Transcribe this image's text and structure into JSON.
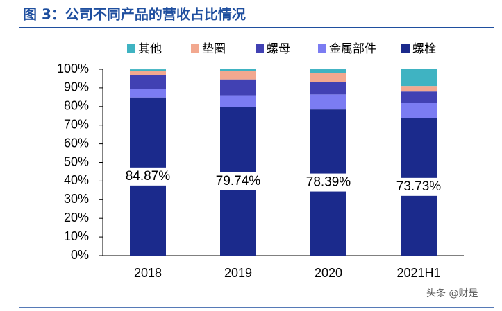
{
  "chart_data": {
    "type": "stacked-bar",
    "title": "图 3：公司不同产品的营收占比情况",
    "categories": [
      "2018",
      "2019",
      "2020",
      "2021H1"
    ],
    "series": [
      {
        "name": "螺栓",
        "color": "#1b2a8c",
        "values": [
          84.87,
          79.74,
          78.39,
          73.73
        ],
        "value_labels": [
          "84.87%",
          "79.74%",
          "78.39%",
          "73.73%"
        ]
      },
      {
        "name": "金属部件",
        "color": "#7b7cf2",
        "values": [
          4.6,
          6.3,
          8.1,
          8.3
        ]
      },
      {
        "name": "螺母",
        "color": "#4141b3",
        "values": [
          7.5,
          8.5,
          6.5,
          6.0
        ]
      },
      {
        "name": "垫圈",
        "color": "#f2a88f",
        "values": [
          2.0,
          4.5,
          5.0,
          3.0
        ]
      },
      {
        "name": "其他",
        "color": "#3fb3c2",
        "values": [
          1.0,
          1.0,
          2.0,
          9.0
        ]
      }
    ],
    "ylim": [
      0,
      100
    ],
    "yticks": [
      {
        "value": 0,
        "label": "0%"
      },
      {
        "value": 10,
        "label": "10%"
      },
      {
        "value": 20,
        "label": "20%"
      },
      {
        "value": 30,
        "label": "30%"
      },
      {
        "value": 40,
        "label": "40%"
      },
      {
        "value": 50,
        "label": "50%"
      },
      {
        "value": 60,
        "label": "60%"
      },
      {
        "value": 70,
        "label": "70%"
      },
      {
        "value": 80,
        "label": "80%"
      },
      {
        "value": 90,
        "label": "90%"
      },
      {
        "value": 100,
        "label": "100%"
      }
    ],
    "watermark": "头条 @财是"
  }
}
